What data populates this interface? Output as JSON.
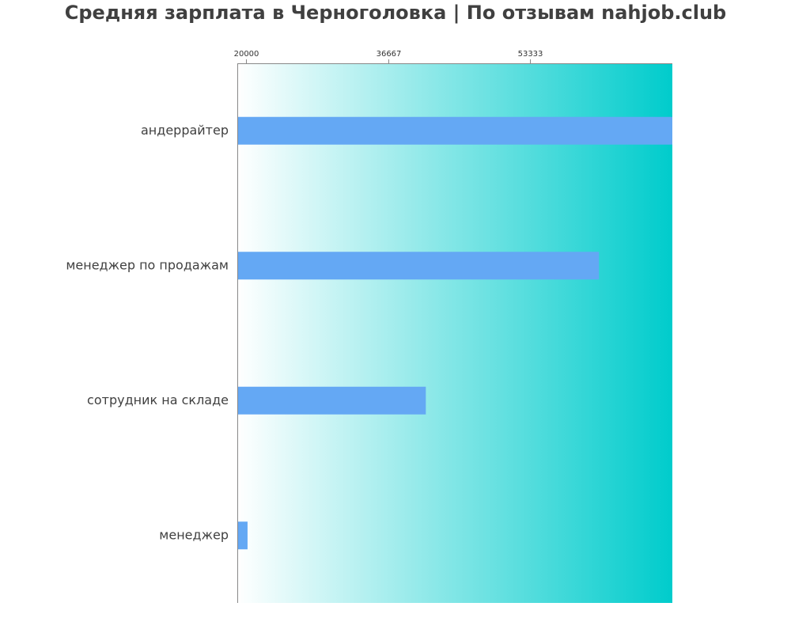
{
  "chart_data": {
    "type": "bar",
    "orientation": "horizontal",
    "title": "Средняя зарплата в Черноголовка | По отзывам nahjob.club",
    "xlabel": "",
    "ylabel": "",
    "categories": [
      "андеррайтер",
      "менеджер по продажам",
      "сотрудник на складе",
      "менеджер"
    ],
    "values": [
      70000,
      61400,
      41100,
      20200
    ],
    "xlim": [
      19000,
      70000
    ],
    "x_ticks": [
      {
        "value": 20000,
        "label": "20000"
      },
      {
        "value": 36667,
        "label": "36667"
      },
      {
        "value": 53333,
        "label": "53333"
      }
    ],
    "x_axis_position": "top",
    "grid": false,
    "legend": "none",
    "colors": {
      "bar": "#64a8f4",
      "background_gradient_start": "#ffffff",
      "background_gradient_end": "#00cccc",
      "axis": "#888888",
      "title": "#404040",
      "label": "#404040"
    }
  }
}
